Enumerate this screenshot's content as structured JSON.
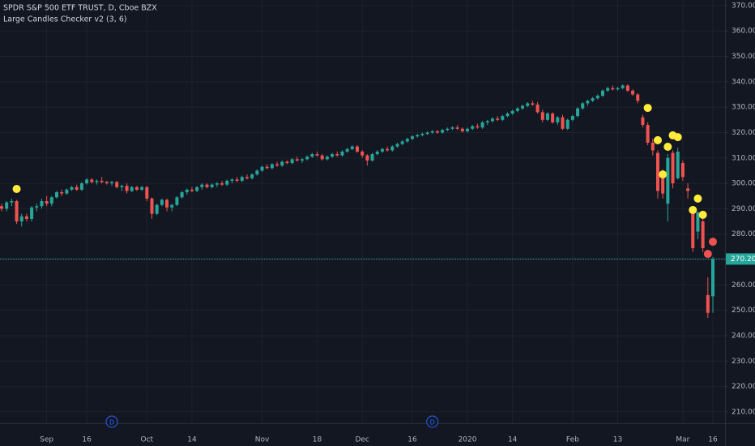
{
  "chart_data": {
    "type": "candlestick",
    "title": "SPDR S&P 500 ETF TRUST, D, Cboe BZX",
    "subtitle": "Large Candles Checker v2 (3, 6)",
    "up_color": "#26a69a",
    "down_color": "#ef5350",
    "grid": true,
    "categories": [
      null,
      null,
      null,
      null,
      null,
      null,
      null,
      null,
      null,
      "Sep",
      null,
      null,
      null,
      null,
      null,
      null,
      null,
      "16",
      null,
      null,
      null,
      null,
      null,
      null,
      null,
      null,
      null,
      null,
      null,
      "Oct",
      null,
      null,
      null,
      null,
      null,
      null,
      null,
      null,
      "14",
      null,
      null,
      null,
      null,
      null,
      null,
      null,
      null,
      null,
      null,
      null,
      null,
      null,
      "Nov",
      null,
      null,
      null,
      null,
      null,
      null,
      null,
      null,
      null,
      null,
      "18",
      null,
      null,
      null,
      null,
      null,
      null,
      null,
      null,
      "Dec",
      null,
      null,
      null,
      null,
      null,
      null,
      null,
      null,
      null,
      "16",
      null,
      null,
      null,
      null,
      null,
      null,
      null,
      null,
      null,
      null,
      "2020",
      null,
      null,
      null,
      null,
      null,
      null,
      null,
      null,
      "14",
      null,
      null,
      null,
      null,
      null,
      null,
      null,
      null,
      null,
      null,
      null,
      "Feb",
      null,
      null,
      null,
      null,
      null,
      null,
      null,
      null,
      "13",
      null,
      null,
      null,
      null,
      null,
      null,
      null,
      null,
      null,
      null,
      null,
      null,
      "Mar",
      null,
      null,
      null,
      null,
      null,
      "16"
    ],
    "values": [
      [
        291,
        292,
        289,
        290
      ],
      [
        290,
        293,
        289,
        292.5
      ],
      [
        292.5,
        294,
        291,
        293
      ],
      [
        293,
        293.5,
        284,
        285
      ],
      [
        285,
        288,
        283,
        287
      ],
      [
        287,
        288,
        285,
        286
      ],
      [
        286,
        291,
        285,
        290.5
      ],
      [
        290.5,
        292,
        289,
        291
      ],
      [
        291,
        294,
        290,
        293
      ],
      [
        293,
        295,
        291,
        292
      ],
      [
        292,
        295,
        291,
        294.5
      ],
      [
        294.5,
        297,
        294,
        296.5
      ],
      [
        296.5,
        297.5,
        295,
        296
      ],
      [
        296,
        298,
        295.5,
        297.5
      ],
      [
        297.5,
        299,
        297,
        298.5
      ],
      [
        298.5,
        299.5,
        297,
        297.5
      ],
      [
        297.5,
        300.5,
        297,
        300
      ],
      [
        300,
        302,
        299.5,
        301.5
      ],
      [
        301.5,
        302,
        300,
        300.5
      ],
      [
        300.5,
        301.5,
        299.5,
        301
      ],
      [
        301,
        302.5,
        300,
        300.5
      ],
      [
        300.5,
        301,
        299.5,
        300
      ],
      [
        300,
        301,
        299,
        300.5
      ],
      [
        300.5,
        301,
        298,
        298.5
      ],
      [
        298.5,
        299.5,
        297,
        299
      ],
      [
        299,
        300,
        296,
        297
      ],
      [
        297,
        299,
        296.5,
        298.5
      ],
      [
        298.5,
        299,
        297,
        297.5
      ],
      [
        297.5,
        299,
        297,
        298.5
      ],
      [
        298.5,
        299,
        293,
        294
      ],
      [
        294,
        294.5,
        286,
        288
      ],
      [
        288,
        292,
        287.5,
        291.5
      ],
      [
        291.5,
        294,
        291,
        293.5
      ],
      [
        293.5,
        294,
        289,
        290.5
      ],
      [
        290.5,
        292,
        289,
        291.5
      ],
      [
        291.5,
        295,
        291,
        294.5
      ],
      [
        294.5,
        297,
        294,
        296.5
      ],
      [
        296.5,
        298,
        295.5,
        297.5
      ],
      [
        297.5,
        298.5,
        296.5,
        297
      ],
      [
        297,
        299,
        296.5,
        298.5
      ],
      [
        298.5,
        300,
        297.5,
        299.5
      ],
      [
        299.5,
        300,
        298,
        298.5
      ],
      [
        298.5,
        300,
        298,
        299.5
      ],
      [
        299.5,
        300.5,
        298.5,
        300
      ],
      [
        300,
        301,
        299,
        299.5
      ],
      [
        299.5,
        301.5,
        299,
        301
      ],
      [
        301,
        302,
        300,
        301.5
      ],
      [
        301.5,
        302.5,
        300.5,
        301
      ],
      [
        301,
        303,
        300.5,
        302.5
      ],
      [
        302.5,
        303.5,
        301.5,
        302
      ],
      [
        302,
        304,
        301.5,
        303.5
      ],
      [
        303.5,
        305.5,
        303,
        305
      ],
      [
        305,
        307,
        304.5,
        306.5
      ],
      [
        306.5,
        307.5,
        305.5,
        306
      ],
      [
        306,
        308,
        305.5,
        307.5
      ],
      [
        307.5,
        308.5,
        306.5,
        307
      ],
      [
        307,
        309,
        306.5,
        308.5
      ],
      [
        308.5,
        309,
        307.5,
        308
      ],
      [
        308,
        310,
        307.5,
        309.5
      ],
      [
        309.5,
        310.5,
        308.5,
        309
      ],
      [
        309,
        310,
        308,
        309.5
      ],
      [
        309.5,
        311,
        309,
        310.5
      ],
      [
        310.5,
        312,
        310,
        311.5
      ],
      [
        311.5,
        312.5,
        310.5,
        311
      ],
      [
        311,
        311.5,
        309,
        309.5
      ],
      [
        309.5,
        311,
        309,
        310.5
      ],
      [
        310.5,
        312,
        310,
        311.5
      ],
      [
        311.5,
        312.5,
        310.5,
        311
      ],
      [
        311,
        313,
        310.5,
        312.5
      ],
      [
        312.5,
        314,
        312,
        313.5
      ],
      [
        313.5,
        315,
        313,
        314.5
      ],
      [
        314.5,
        315,
        312,
        312.5
      ],
      [
        312.5,
        313,
        310,
        311
      ],
      [
        311,
        311.5,
        307,
        309
      ],
      [
        309,
        312,
        308.5,
        311.5
      ],
      [
        311.5,
        313,
        311,
        312.5
      ],
      [
        312.5,
        314,
        312,
        313.5
      ],
      [
        313.5,
        314.5,
        312.5,
        313
      ],
      [
        313,
        315,
        312.5,
        314.5
      ],
      [
        314.5,
        316,
        314,
        315.5
      ],
      [
        315.5,
        317,
        315,
        316.5
      ],
      [
        316.5,
        318,
        316,
        317.5
      ],
      [
        317.5,
        319,
        317,
        318.5
      ],
      [
        318.5,
        319.5,
        318,
        319
      ],
      [
        319,
        320,
        318.5,
        319.5
      ],
      [
        319.5,
        320.5,
        319,
        320
      ],
      [
        320,
        321,
        319.5,
        320.5
      ],
      [
        320.5,
        321,
        319.5,
        320
      ],
      [
        320,
        321.5,
        319.5,
        321
      ],
      [
        321,
        322,
        320.5,
        321.5
      ],
      [
        321.5,
        322.5,
        321,
        322
      ],
      [
        322,
        323,
        321,
        321.5
      ],
      [
        321.5,
        322,
        320,
        320.5
      ],
      [
        320.5,
        322,
        320,
        321.5
      ],
      [
        321.5,
        323,
        321,
        322.5
      ],
      [
        322.5,
        323.5,
        321.5,
        322
      ],
      [
        322,
        324.5,
        321.5,
        324
      ],
      [
        324,
        325,
        323,
        324.5
      ],
      [
        324.5,
        326,
        324,
        325.5
      ],
      [
        325.5,
        326.5,
        324.5,
        325
      ],
      [
        325,
        327,
        324.5,
        326.5
      ],
      [
        326.5,
        328,
        326,
        327.5
      ],
      [
        327.5,
        329,
        327,
        328.5
      ],
      [
        328.5,
        330,
        328,
        329.5
      ],
      [
        329.5,
        331,
        329,
        330.5
      ],
      [
        330.5,
        332,
        330,
        331.5
      ],
      [
        331.5,
        332.5,
        330.5,
        331
      ],
      [
        331,
        332,
        327.5,
        328
      ],
      [
        328,
        329,
        324,
        325
      ],
      [
        325,
        328,
        324.5,
        327.5
      ],
      [
        327.5,
        328,
        323.5,
        324
      ],
      [
        324,
        326.5,
        323,
        326
      ],
      [
        326,
        327,
        321,
        321.5
      ],
      [
        321.5,
        325.5,
        321,
        325
      ],
      [
        325,
        327,
        324.5,
        326.5
      ],
      [
        326.5,
        330,
        326,
        329.5
      ],
      [
        329.5,
        332,
        329,
        331.5
      ],
      [
        331.5,
        333,
        330.5,
        332.5
      ],
      [
        332.5,
        334,
        332,
        333.5
      ],
      [
        333.5,
        335,
        333,
        334.5
      ],
      [
        334.5,
        337,
        334,
        336.5
      ],
      [
        336.5,
        338,
        336,
        337.5
      ],
      [
        337.5,
        338.5,
        336.5,
        337
      ],
      [
        337,
        338,
        336.5,
        337.5
      ],
      [
        337.5,
        339,
        337,
        338.5
      ],
      [
        338.5,
        339,
        336,
        336.5
      ],
      [
        336.5,
        337,
        334.5,
        335
      ],
      [
        335,
        335.5,
        331.5,
        332.5
      ],
      [
        326,
        327,
        322,
        323
      ],
      [
        323,
        324,
        315,
        316
      ],
      [
        316,
        317.5,
        311,
        313
      ],
      [
        312,
        313,
        294,
        297
      ],
      [
        304,
        305.5,
        294,
        296
      ],
      [
        292,
        311.5,
        285,
        310
      ],
      [
        312,
        313,
        298,
        300
      ],
      [
        302,
        314,
        301.5,
        312.5
      ],
      [
        308,
        309,
        301,
        302.5
      ],
      [
        298,
        300,
        294,
        297
      ],
      [
        288,
        288.5,
        273,
        274.5
      ],
      [
        281,
        289,
        278,
        288.5
      ],
      [
        285,
        287,
        273,
        274.5
      ],
      [
        256,
        263,
        247,
        249
      ],
      [
        255.5,
        271,
        249,
        270.2
      ]
    ],
    "signals": {
      "x": [
        3,
        129,
        131,
        132,
        133,
        134,
        135,
        138,
        139,
        140,
        141,
        142
      ],
      "values": [
        297.8,
        329.7,
        317,
        303.5,
        314.4,
        318.9,
        318.2,
        289.5,
        294,
        287.6,
        272.2,
        277
      ],
      "colors": [
        "#ffeb3b",
        "#ffeb3b",
        "#ffeb3b",
        "#ffeb3b",
        "#ffeb3b",
        "#ffeb3b",
        "#ffeb3b",
        "#ffeb3b",
        "#ffeb3b",
        "#ffeb3b",
        "#ef5350",
        "#ef5350"
      ]
    },
    "events": [
      {
        "label": "D",
        "x": 22
      },
      {
        "label": "D",
        "x": 86
      }
    ],
    "last_price": {
      "value": 270.2,
      "label": "270.20"
    },
    "ylim": [
      205.5,
      372.2
    ],
    "yticks": [
      {
        "value": 210,
        "label": "210.00"
      },
      {
        "value": 220,
        "label": "220.00"
      },
      {
        "value": 230,
        "label": "230.00"
      },
      {
        "value": 240,
        "label": "240.00"
      },
      {
        "value": 250,
        "label": "250.00"
      },
      {
        "value": 260,
        "label": "260.00"
      },
      {
        "value": 270,
        "label": "270.00"
      },
      {
        "value": 280,
        "label": "280.00"
      },
      {
        "value": 290,
        "label": "290.00"
      },
      {
        "value": 300,
        "label": "300.00"
      },
      {
        "value": 310,
        "label": "310.00"
      },
      {
        "value": 320,
        "label": "320.00"
      },
      {
        "value": 330,
        "label": "330.00"
      },
      {
        "value": 340,
        "label": "340.00"
      },
      {
        "value": 350,
        "label": "350.00"
      },
      {
        "value": 360,
        "label": "360.00"
      },
      {
        "value": 370,
        "label": "370.00"
      }
    ]
  }
}
